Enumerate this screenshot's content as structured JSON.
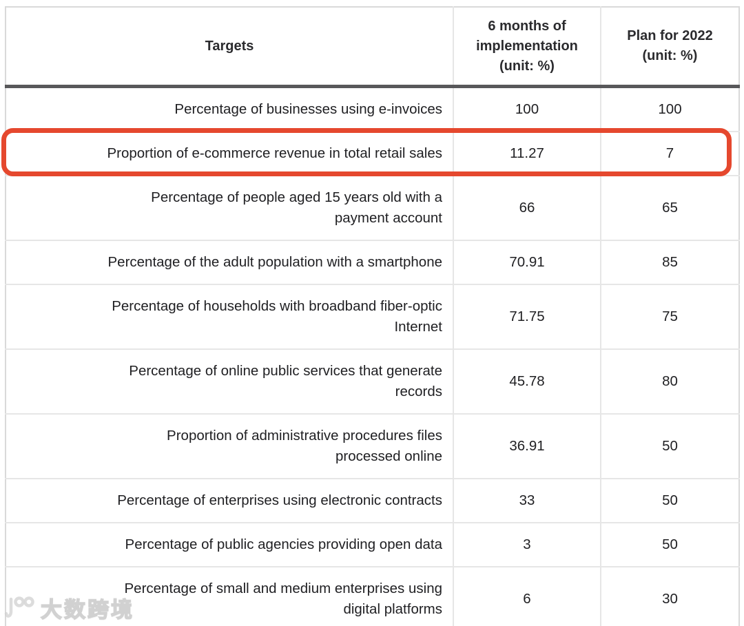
{
  "chart_data": {
    "type": "table",
    "title": "",
    "columns": [
      "Targets",
      "6 months of implementation (unit: %)",
      "Plan for 2022 (unit: %)"
    ],
    "rows": [
      [
        "Percentage of businesses using e-invoices",
        "100",
        "100"
      ],
      [
        "Proportion of e-commerce revenue in total retail sales",
        "11.27",
        "7"
      ],
      [
        "Percentage of people aged 15 years old with a\npayment account",
        "66",
        "65"
      ],
      [
        "Percentage of the adult population with a smartphone",
        "70.91",
        "85"
      ],
      [
        "Percentage of households with broadband fiber-optic\nInternet",
        "71.75",
        "75"
      ],
      [
        "Percentage of online public services that generate\nrecords",
        "45.78",
        "80"
      ],
      [
        "Proportion of administrative procedures files\nprocessed online",
        "36.91",
        "50"
      ],
      [
        "Percentage of enterprises using electronic contracts",
        "33",
        "50"
      ],
      [
        "Percentage of public agencies providing open data",
        "3",
        "50"
      ],
      [
        "Percentage of small and medium enterprises using\ndigital platforms",
        "6",
        "30"
      ]
    ],
    "layout": {
      "target_column_align": "right",
      "value_columns_align": "center",
      "grid": "light horizontal and vertical separators, thick dark rule under header"
    }
  },
  "annotation": {
    "shape": "rounded-rectangle-outline",
    "color": "#e5482e",
    "highlighted_row_index": 1,
    "highlighted_row_target": "Proportion of e-commerce revenue in total retail sales"
  },
  "watermark": {
    "text": "大数跨境"
  },
  "colors": {
    "text": "#1f1f22",
    "separator": "#e6e6e6",
    "outer_border": "#d9d9d9",
    "header_rule": "#58585a",
    "background": "#ffffff"
  }
}
